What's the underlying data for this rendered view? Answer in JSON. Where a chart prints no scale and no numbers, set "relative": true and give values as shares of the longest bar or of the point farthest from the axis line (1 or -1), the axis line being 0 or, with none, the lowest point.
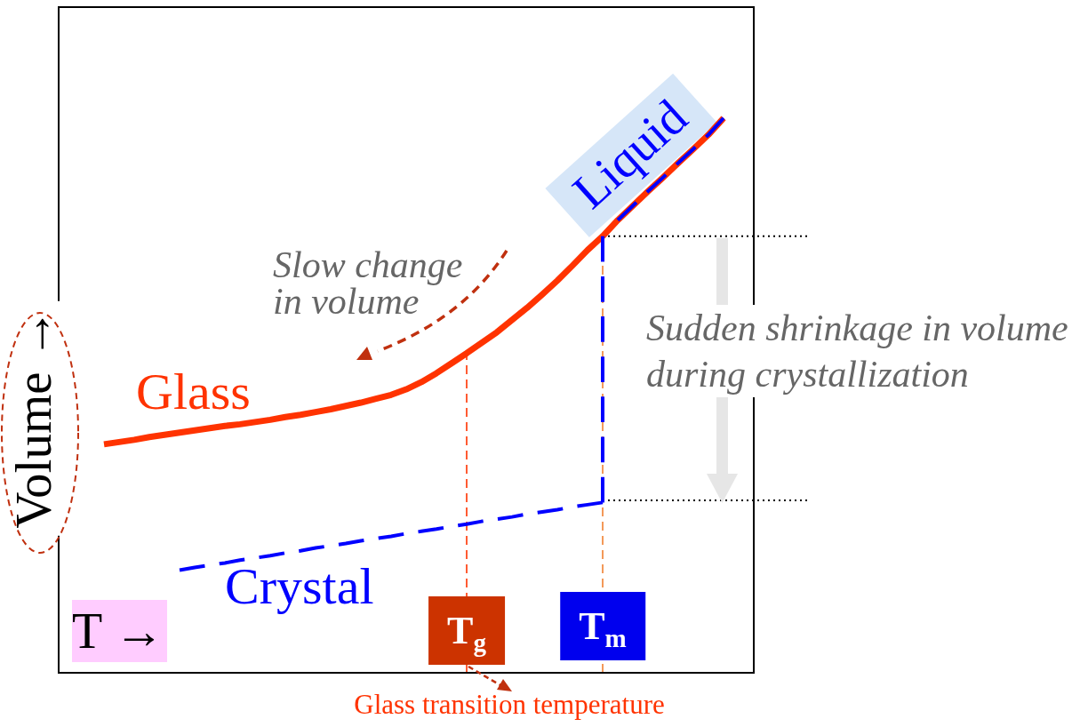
{
  "chart_data": {
    "type": "line",
    "relative": true,
    "tick_labels": "x",
    "xlabel": "T →",
    "ylabel": "Volume →",
    "categories": [
      null,
      null,
      null,
      null,
      null,
      null,
      null,
      null,
      null,
      null,
      null,
      null,
      null,
      null,
      null,
      null,
      null,
      null,
      null,
      null,
      null,
      null,
      null,
      null,
      null,
      null,
      null,
      "T$_{g}$",
      null,
      null,
      null,
      null,
      null,
      null,
      null,
      null,
      "T$_{m}$",
      null,
      null,
      null,
      null,
      null,
      null,
      null,
      null,
      null,
      null
    ],
    "series": [
      {
        "name": "Glass",
        "color": "#ff3300",
        "line_style": "solid",
        "values": [
          null,
          null,
          null,
          0.412,
          0.416,
          0.42,
          0.425,
          0.429,
          0.433,
          0.437,
          0.441,
          0.445,
          0.448,
          0.452,
          0.456,
          0.461,
          0.465,
          0.47,
          0.475,
          0.481,
          0.487,
          0.494,
          0.501,
          0.511,
          0.524,
          0.54,
          0.558,
          0.576,
          0.595,
          0.614,
          0.636,
          0.658,
          0.682,
          0.707,
          0.734,
          0.762,
          0.787,
          0.816,
          0.842,
          0.868,
          0.893,
          0.919,
          0.944,
          0.97,
          1,
          null,
          null
        ]
      },
      {
        "name": "Crystal",
        "color": "#0000ff",
        "line_style": "dashed",
        "values": [
          null,
          null,
          null,
          null,
          null,
          null,
          null,
          null,
          0.185,
          0.19,
          0.194,
          0.198,
          0.203,
          0.207,
          0.211,
          0.216,
          0.22,
          0.225,
          0.229,
          0.233,
          0.238,
          0.242,
          0.246,
          0.251,
          0.255,
          0.259,
          0.264,
          0.268,
          0.273,
          0.277,
          0.281,
          0.286,
          0.29,
          0.294,
          0.299,
          0.303,
          0.307,
          null,
          null,
          null,
          null,
          null,
          null,
          null,
          null,
          null,
          null
        ]
      },
      {
        "name": "Liquid",
        "color": "#0000ff",
        "line_style": "dashed",
        "values": [
          null,
          null,
          null,
          null,
          null,
          null,
          null,
          null,
          null,
          null,
          null,
          null,
          null,
          null,
          null,
          null,
          null,
          null,
          null,
          null,
          null,
          null,
          null,
          null,
          null,
          null,
          null,
          null,
          null,
          null,
          null,
          null,
          null,
          null,
          null,
          null,
          null,
          0.816,
          0.842,
          0.868,
          0.893,
          0.919,
          0.944,
          0.97,
          1,
          null,
          null
        ]
      },
      {
        "color": "#0000ff",
        "line_style": "dashed",
        "x": [
          "T$_{m}$",
          "T$_{m}$"
        ],
        "values": [
          0.307,
          0.787
        ]
      }
    ],
    "ref_lines": [
      {
        "axis": "y",
        "value": 0.787,
        "color": "#000000",
        "line_style": "dotted"
      },
      {
        "axis": "y",
        "value": 0.311,
        "color": "#000000",
        "line_style": "dotted"
      },
      {
        "axis": "x",
        "value": "T$_{g}$",
        "color": "#ff3300",
        "line_style": "dashed"
      },
      {
        "axis": "x",
        "value": "T$_{m}$",
        "color": "#f08030",
        "line_style": "dashed"
      }
    ],
    "annotations": [
      "Slow change in volume",
      "Sudden shrinkage in volume during crystallization",
      "Glass transition temperature"
    ]
  }
}
